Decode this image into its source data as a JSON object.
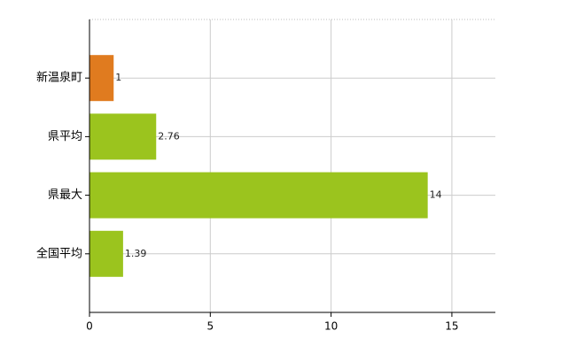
{
  "chart_data": {
    "type": "hbar",
    "categories": [
      "新温泉町",
      "県平均",
      "県最大",
      "全国平均"
    ],
    "values": [
      1,
      2.76,
      14,
      1.39
    ],
    "colors": [
      "#e07b1f",
      "#9bc41e",
      "#9bc41e",
      "#9bc41e"
    ],
    "xlim": [
      0,
      16.8
    ],
    "xticks": [
      0,
      5,
      10,
      15
    ],
    "grid": true
  }
}
